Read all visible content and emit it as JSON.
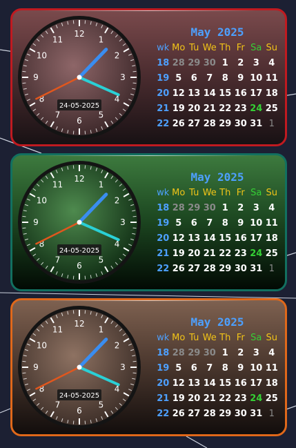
{
  "colors": {
    "background": "#1c2033",
    "week_number": "#4da0ff",
    "weekday_header": "#f2c418",
    "saturday": "#35d035",
    "other_month_day": "#8a8a8a",
    "hour_hand": "#e0571e",
    "minute_hand": "#3a8df0",
    "second_hand": "#2ad0d6"
  },
  "clock_numbers": [
    "12",
    "1",
    "2",
    "3",
    "4",
    "5",
    "6",
    "7",
    "8",
    "9",
    "10",
    "11"
  ],
  "clock_time": {
    "hour": 8,
    "minute": 7,
    "second": 19
  },
  "widgets": [
    {
      "theme": "red",
      "clock": {
        "date": "24-05-2025"
      },
      "calendar": {
        "title": "May 2025",
        "headers": [
          "wk",
          "Mo",
          "Tu",
          "We",
          "Th",
          "Fr",
          "Sa",
          "Su"
        ],
        "weeks": [
          {
            "wk": "18",
            "days": [
              "28",
              "29",
              "30",
              "1",
              "2",
              "3",
              "4"
            ]
          },
          {
            "wk": "19",
            "days": [
              "5",
              "6",
              "7",
              "8",
              "9",
              "10",
              "11"
            ]
          },
          {
            "wk": "20",
            "days": [
              "12",
              "13",
              "14",
              "15",
              "16",
              "17",
              "18"
            ]
          },
          {
            "wk": "21",
            "days": [
              "19",
              "20",
              "21",
              "22",
              "23",
              "24",
              "25"
            ]
          },
          {
            "wk": "22",
            "days": [
              "26",
              "27",
              "28",
              "29",
              "30",
              "31",
              "1"
            ]
          }
        ]
      }
    },
    {
      "theme": "green",
      "clock": {
        "date": "24-05-2025"
      },
      "calendar": {
        "title": "May 2025",
        "headers": [
          "wk",
          "Mo",
          "Tu",
          "We",
          "Th",
          "Fr",
          "Sa",
          "Su"
        ],
        "weeks": [
          {
            "wk": "18",
            "days": [
              "28",
              "29",
              "30",
              "1",
              "2",
              "3",
              "4"
            ]
          },
          {
            "wk": "19",
            "days": [
              "5",
              "6",
              "7",
              "8",
              "9",
              "10",
              "11"
            ]
          },
          {
            "wk": "20",
            "days": [
              "12",
              "13",
              "14",
              "15",
              "16",
              "17",
              "18"
            ]
          },
          {
            "wk": "21",
            "days": [
              "19",
              "20",
              "21",
              "22",
              "23",
              "24",
              "25"
            ]
          },
          {
            "wk": "22",
            "days": [
              "26",
              "27",
              "28",
              "29",
              "30",
              "31",
              "1"
            ]
          }
        ]
      }
    },
    {
      "theme": "orange",
      "clock": {
        "date": "24-05-2025"
      },
      "calendar": {
        "title": "May 2025",
        "headers": [
          "wk",
          "Mo",
          "Tu",
          "We",
          "Th",
          "Fr",
          "Sa",
          "Su"
        ],
        "weeks": [
          {
            "wk": "18",
            "days": [
              "28",
              "29",
              "30",
              "1",
              "2",
              "3",
              "4"
            ]
          },
          {
            "wk": "19",
            "days": [
              "5",
              "6",
              "7",
              "8",
              "9",
              "10",
              "11"
            ]
          },
          {
            "wk": "20",
            "days": [
              "12",
              "13",
              "14",
              "15",
              "16",
              "17",
              "18"
            ]
          },
          {
            "wk": "21",
            "days": [
              "19",
              "20",
              "21",
              "22",
              "23",
              "24",
              "25"
            ]
          },
          {
            "wk": "22",
            "days": [
              "26",
              "27",
              "28",
              "29",
              "30",
              "31",
              "1"
            ]
          }
        ]
      }
    }
  ]
}
